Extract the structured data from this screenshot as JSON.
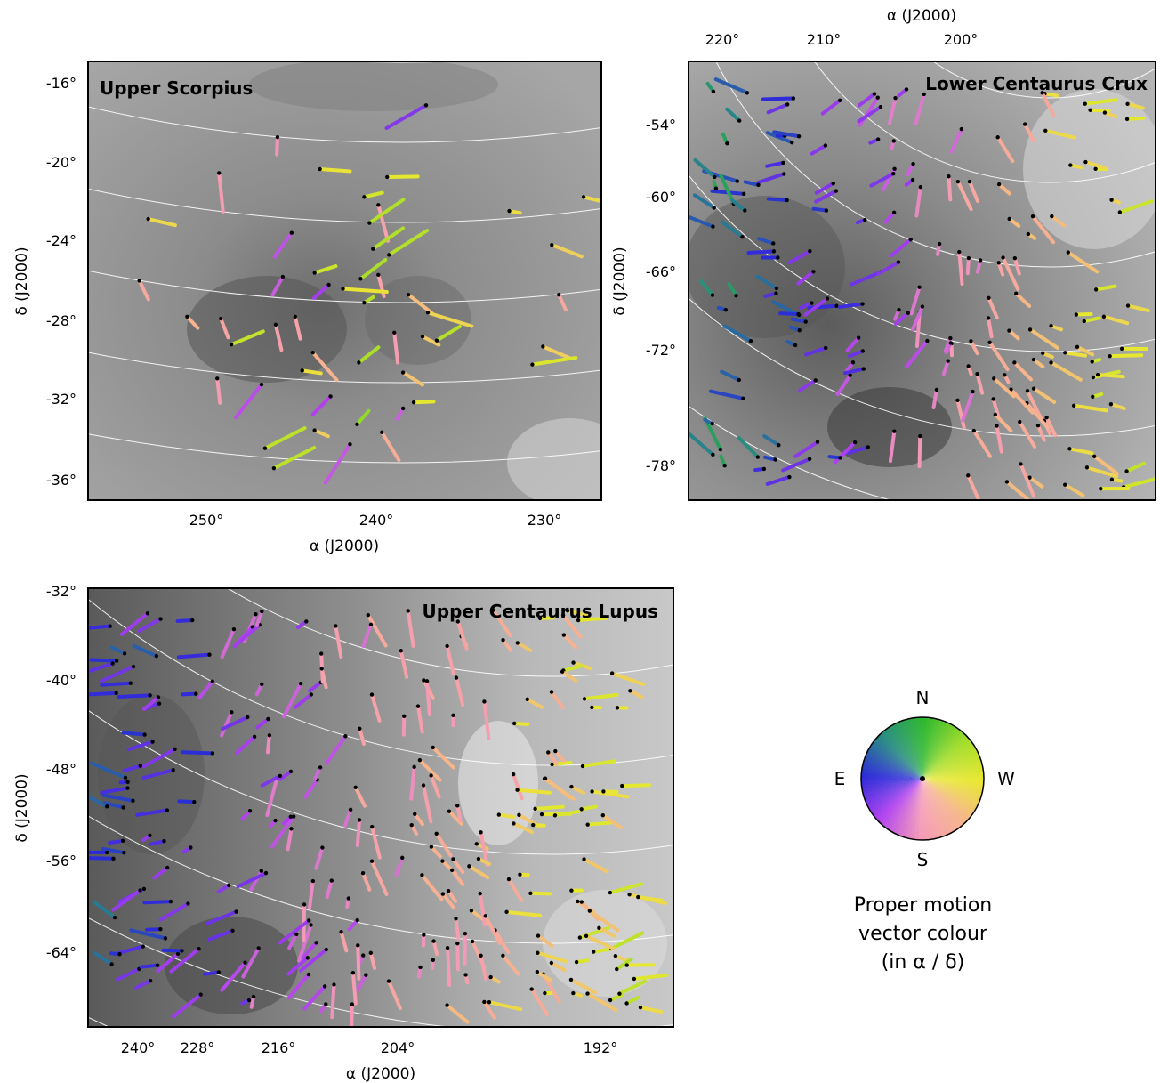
{
  "chart_data": [
    {
      "type": "scatter",
      "title": "Upper Scorpius",
      "xlabel": "α (J2000)",
      "ylabel": "δ (J2000)",
      "x_ticks": [
        "250°",
        "240°",
        "230°"
      ],
      "y_ticks": [
        "-16°",
        "-20°",
        "-24°",
        "-28°",
        "-32°",
        "-36°"
      ],
      "xlim": [
        256,
        227
      ],
      "ylim": [
        -37,
        -15
      ],
      "grid": true,
      "notes_values": "Each point is a star position (α, δ in degrees) with a proper-motion vector colour-coded by direction.",
      "points": [
        [
          236.9,
          -17.2
        ],
        [
          245.3,
          -18.8
        ],
        [
          242.9,
          -20.4
        ],
        [
          248.6,
          -20.6
        ],
        [
          239.1,
          -20.8
        ],
        [
          228.0,
          -21.8
        ],
        [
          240.4,
          -21.8
        ],
        [
          239.6,
          -22.2
        ],
        [
          232.2,
          -22.5
        ],
        [
          252.6,
          -22.9
        ],
        [
          240.1,
          -23.1
        ],
        [
          244.5,
          -23.6
        ],
        [
          239.9,
          -24.4
        ],
        [
          229.8,
          -24.2
        ],
        [
          239.0,
          -24.7
        ],
        [
          239.6,
          -25.7
        ],
        [
          243.2,
          -25.6
        ],
        [
          245.0,
          -25.8
        ],
        [
          253.1,
          -26.0
        ],
        [
          240.6,
          -25.9
        ],
        [
          241.6,
          -26.4
        ],
        [
          242.4,
          -26.2
        ],
        [
          237.9,
          -26.7
        ],
        [
          229.4,
          -26.7
        ],
        [
          240.4,
          -27.1
        ],
        [
          244.3,
          -27.8
        ],
        [
          236.8,
          -27.6
        ],
        [
          250.4,
          -27.8
        ],
        [
          248.5,
          -27.9
        ],
        [
          245.4,
          -28.2
        ],
        [
          238.7,
          -28.6
        ],
        [
          237.1,
          -28.8
        ],
        [
          236.3,
          -29.0
        ],
        [
          247.9,
          -29.2
        ],
        [
          230.3,
          -29.3
        ],
        [
          243.3,
          -29.6
        ],
        [
          240.7,
          -30.1
        ],
        [
          243.9,
          -30.5
        ],
        [
          238.2,
          -30.6
        ],
        [
          248.7,
          -30.9
        ],
        [
          230.9,
          -30.2
        ],
        [
          246.2,
          -31.2
        ],
        [
          242.3,
          -31.8
        ],
        [
          238.2,
          -32.4
        ],
        [
          240.8,
          -33.2
        ],
        [
          243.2,
          -33.5
        ],
        [
          239.4,
          -33.6
        ],
        [
          241.2,
          -34.2
        ],
        [
          246.0,
          -34.4
        ],
        [
          245.5,
          -35.4
        ],
        [
          237.6,
          -32.1
        ]
      ]
    },
    {
      "type": "scatter",
      "title": "Lower Centaurus Crux",
      "xlabel": "α (J2000)",
      "ylabel": "δ (J2000)",
      "x_ticks": [
        "220°",
        "210°",
        "200°"
      ],
      "y_ticks": [
        "-54°",
        "-60°",
        "-66°",
        "-72°",
        "-78°"
      ],
      "ylim": [
        -81,
        -49
      ],
      "grid": true,
      "points_count": 190
    },
    {
      "type": "scatter",
      "title": "Upper Centaurus Lupus",
      "xlabel": "α (J2000)",
      "ylabel": "δ (J2000)",
      "x_ticks": [
        "240°",
        "228°",
        "216°",
        "204°",
        "192°"
      ],
      "y_ticks": [
        "-32°",
        "-40°",
        "-48°",
        "-56°",
        "-64°"
      ],
      "ylim": [
        -70,
        -31
      ],
      "grid": true,
      "points_count": 260
    }
  ],
  "legend": {
    "north": "N",
    "east": "E",
    "west": "W",
    "south": "S",
    "caption_line1": "Proper motion",
    "caption_line2": "vector colour",
    "caption_line3": "(in α / δ)"
  },
  "colors": {
    "north": "#2db82d",
    "west": "#e8e830",
    "south": "#f49ab8",
    "east": "#2a2ad8",
    "south_east": "#b040f0",
    "frame": "#000000",
    "grid": "#ffffff"
  }
}
